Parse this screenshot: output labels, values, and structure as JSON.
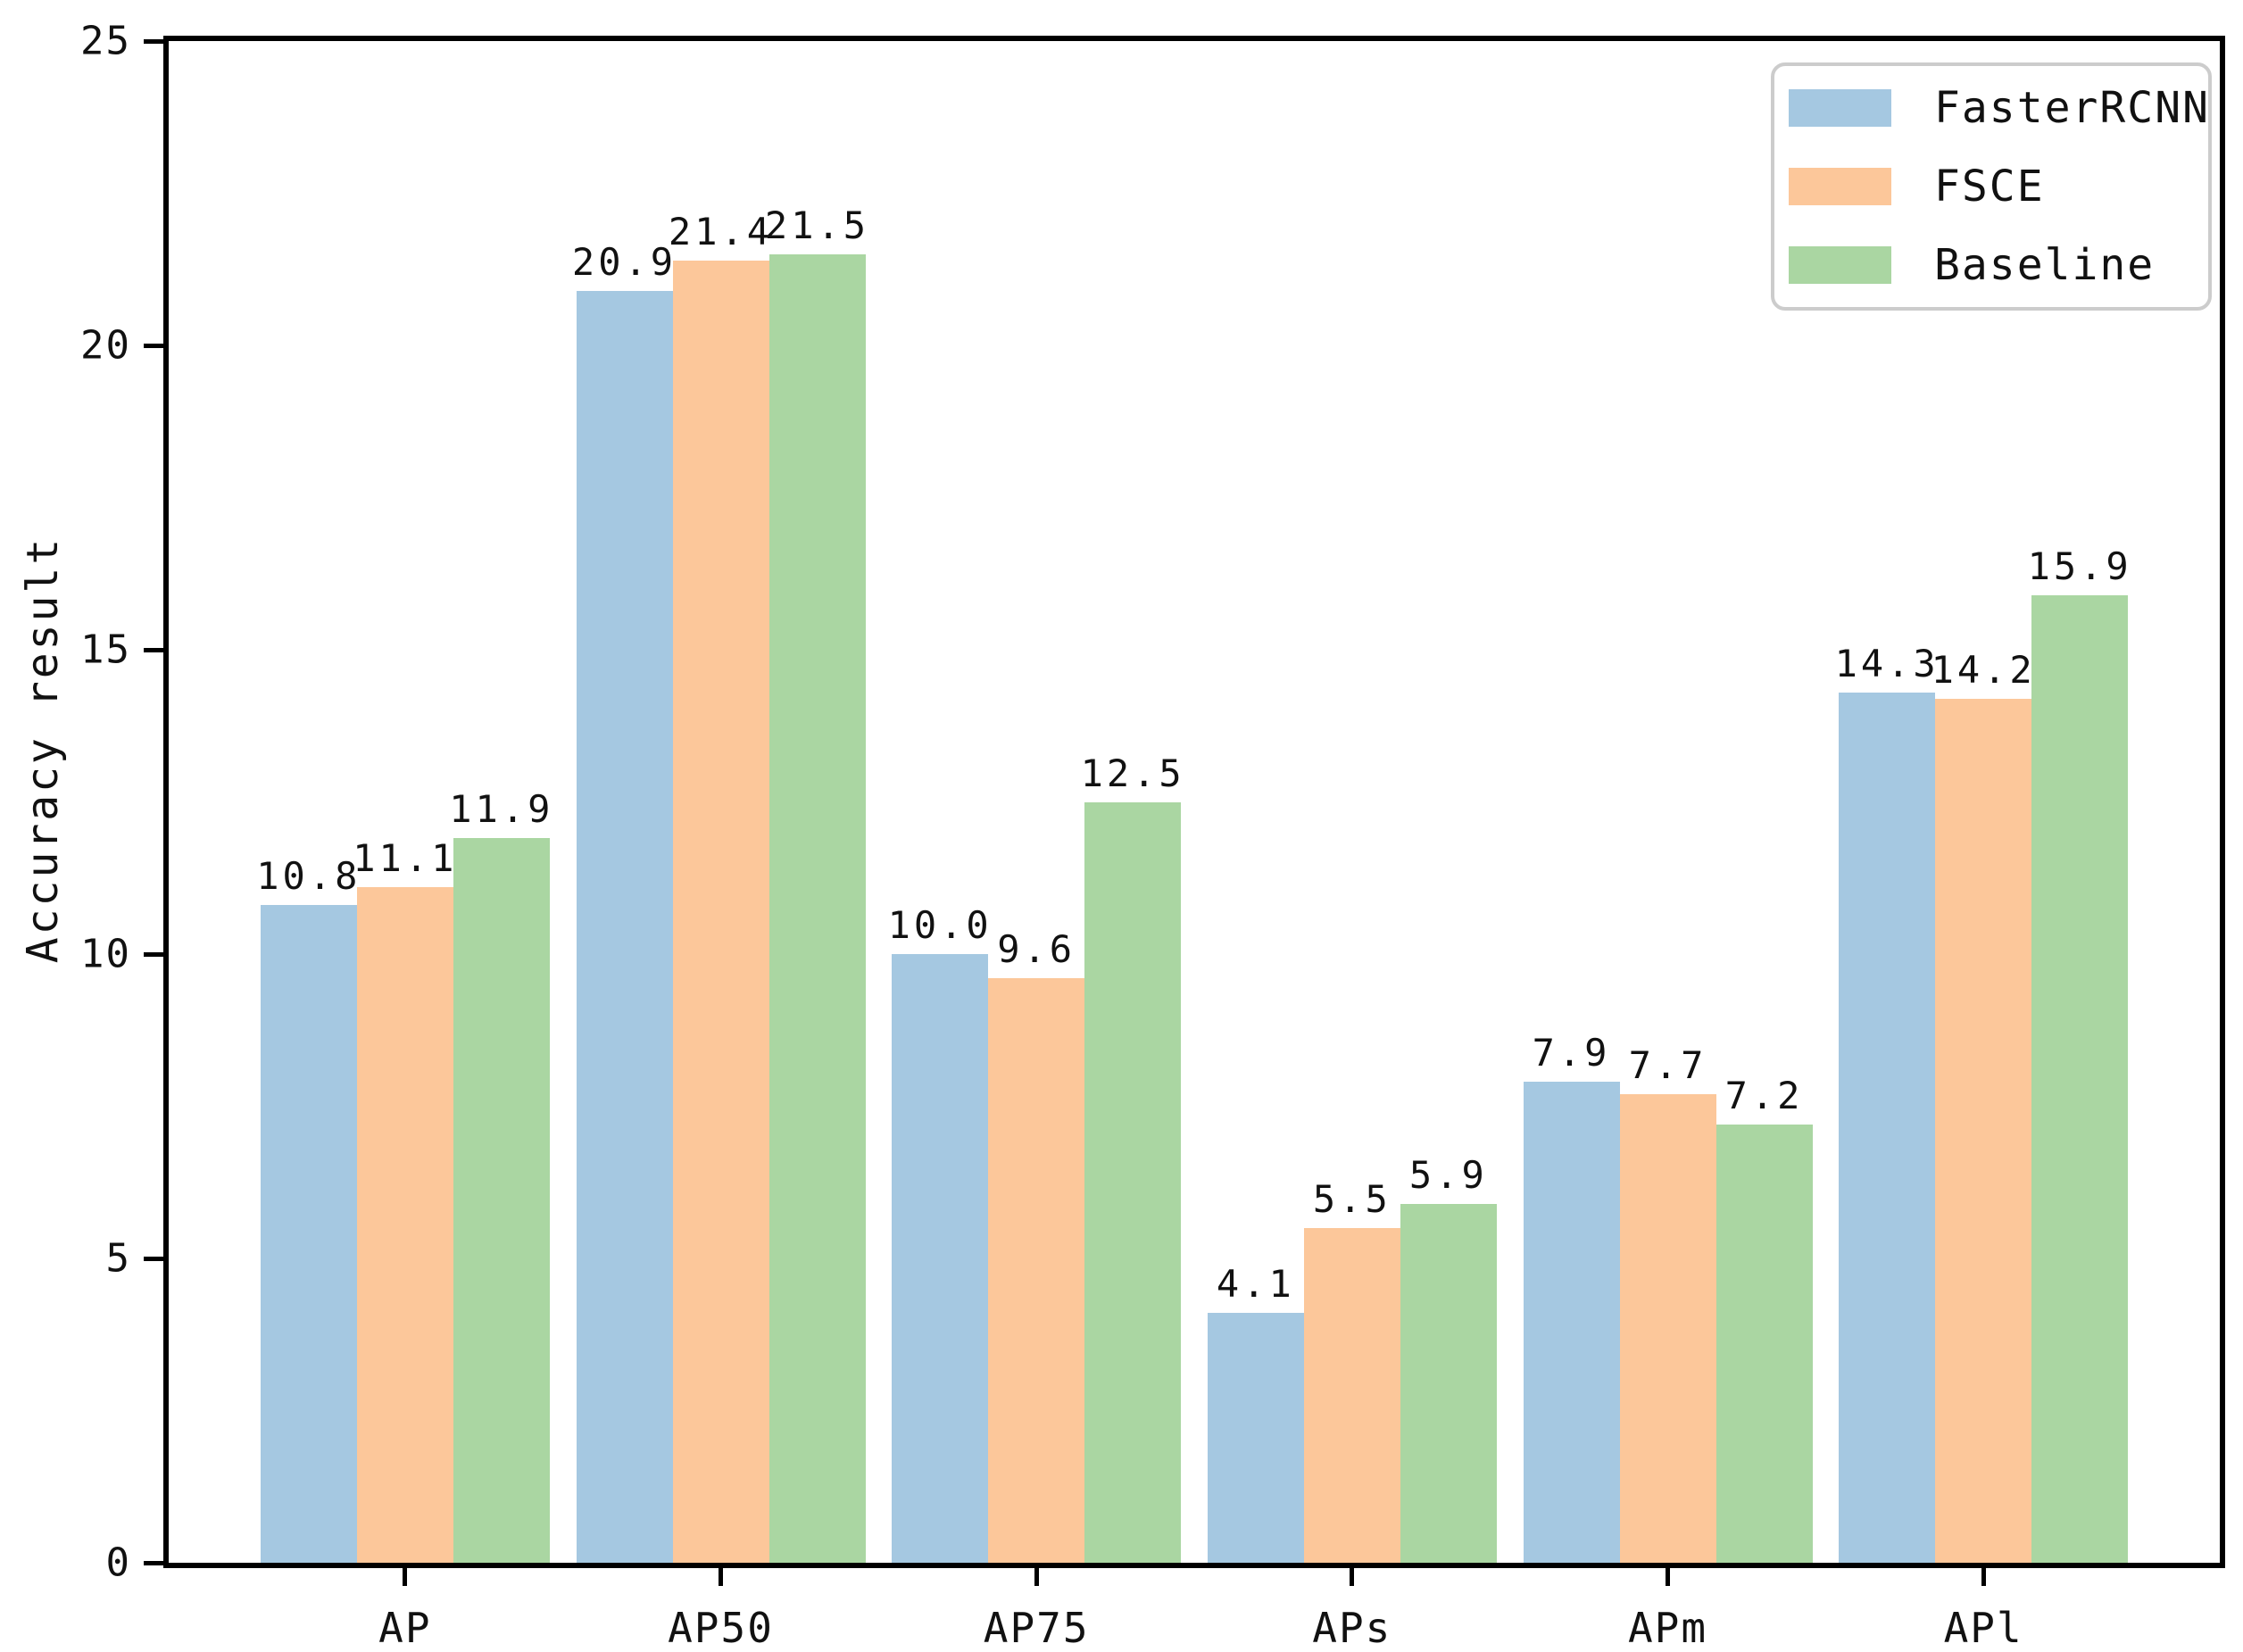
{
  "chart_data": {
    "type": "bar",
    "title": "",
    "xlabel": "",
    "ylabel": "Accuracy result",
    "ylim": [
      0,
      25
    ],
    "yticks": [
      0,
      5,
      10,
      15,
      20,
      25
    ],
    "grid": false,
    "background_color": "#ffffff",
    "axis_color": "#000000",
    "legend": {
      "position": "top-right",
      "border_color": "#cccccc"
    },
    "categories": [
      "AP",
      "AP50",
      "AP75",
      "APs",
      "APm",
      "APl"
    ],
    "series": [
      {
        "name": "FasterRCNN",
        "color": "#a5c8e1",
        "values": [
          10.8,
          20.9,
          10.0,
          4.1,
          7.9,
          14.3
        ],
        "labels": [
          "10.8",
          "20.9",
          "10.0",
          "4.1",
          "7.9",
          "14.3"
        ]
      },
      {
        "name": "FSCE",
        "color": "#fcc79a",
        "values": [
          11.1,
          21.4,
          9.6,
          5.5,
          7.7,
          14.2
        ],
        "labels": [
          "11.1",
          "21.4",
          "9.6",
          "5.5",
          "7.7",
          "14.2"
        ]
      },
      {
        "name": "Baseline",
        "color": "#aad6a2",
        "values": [
          11.9,
          21.5,
          12.5,
          5.9,
          7.2,
          15.9
        ],
        "labels": [
          "11.9",
          "21.5",
          "12.5",
          "5.9",
          "7.2",
          "15.9"
        ]
      }
    ]
  }
}
